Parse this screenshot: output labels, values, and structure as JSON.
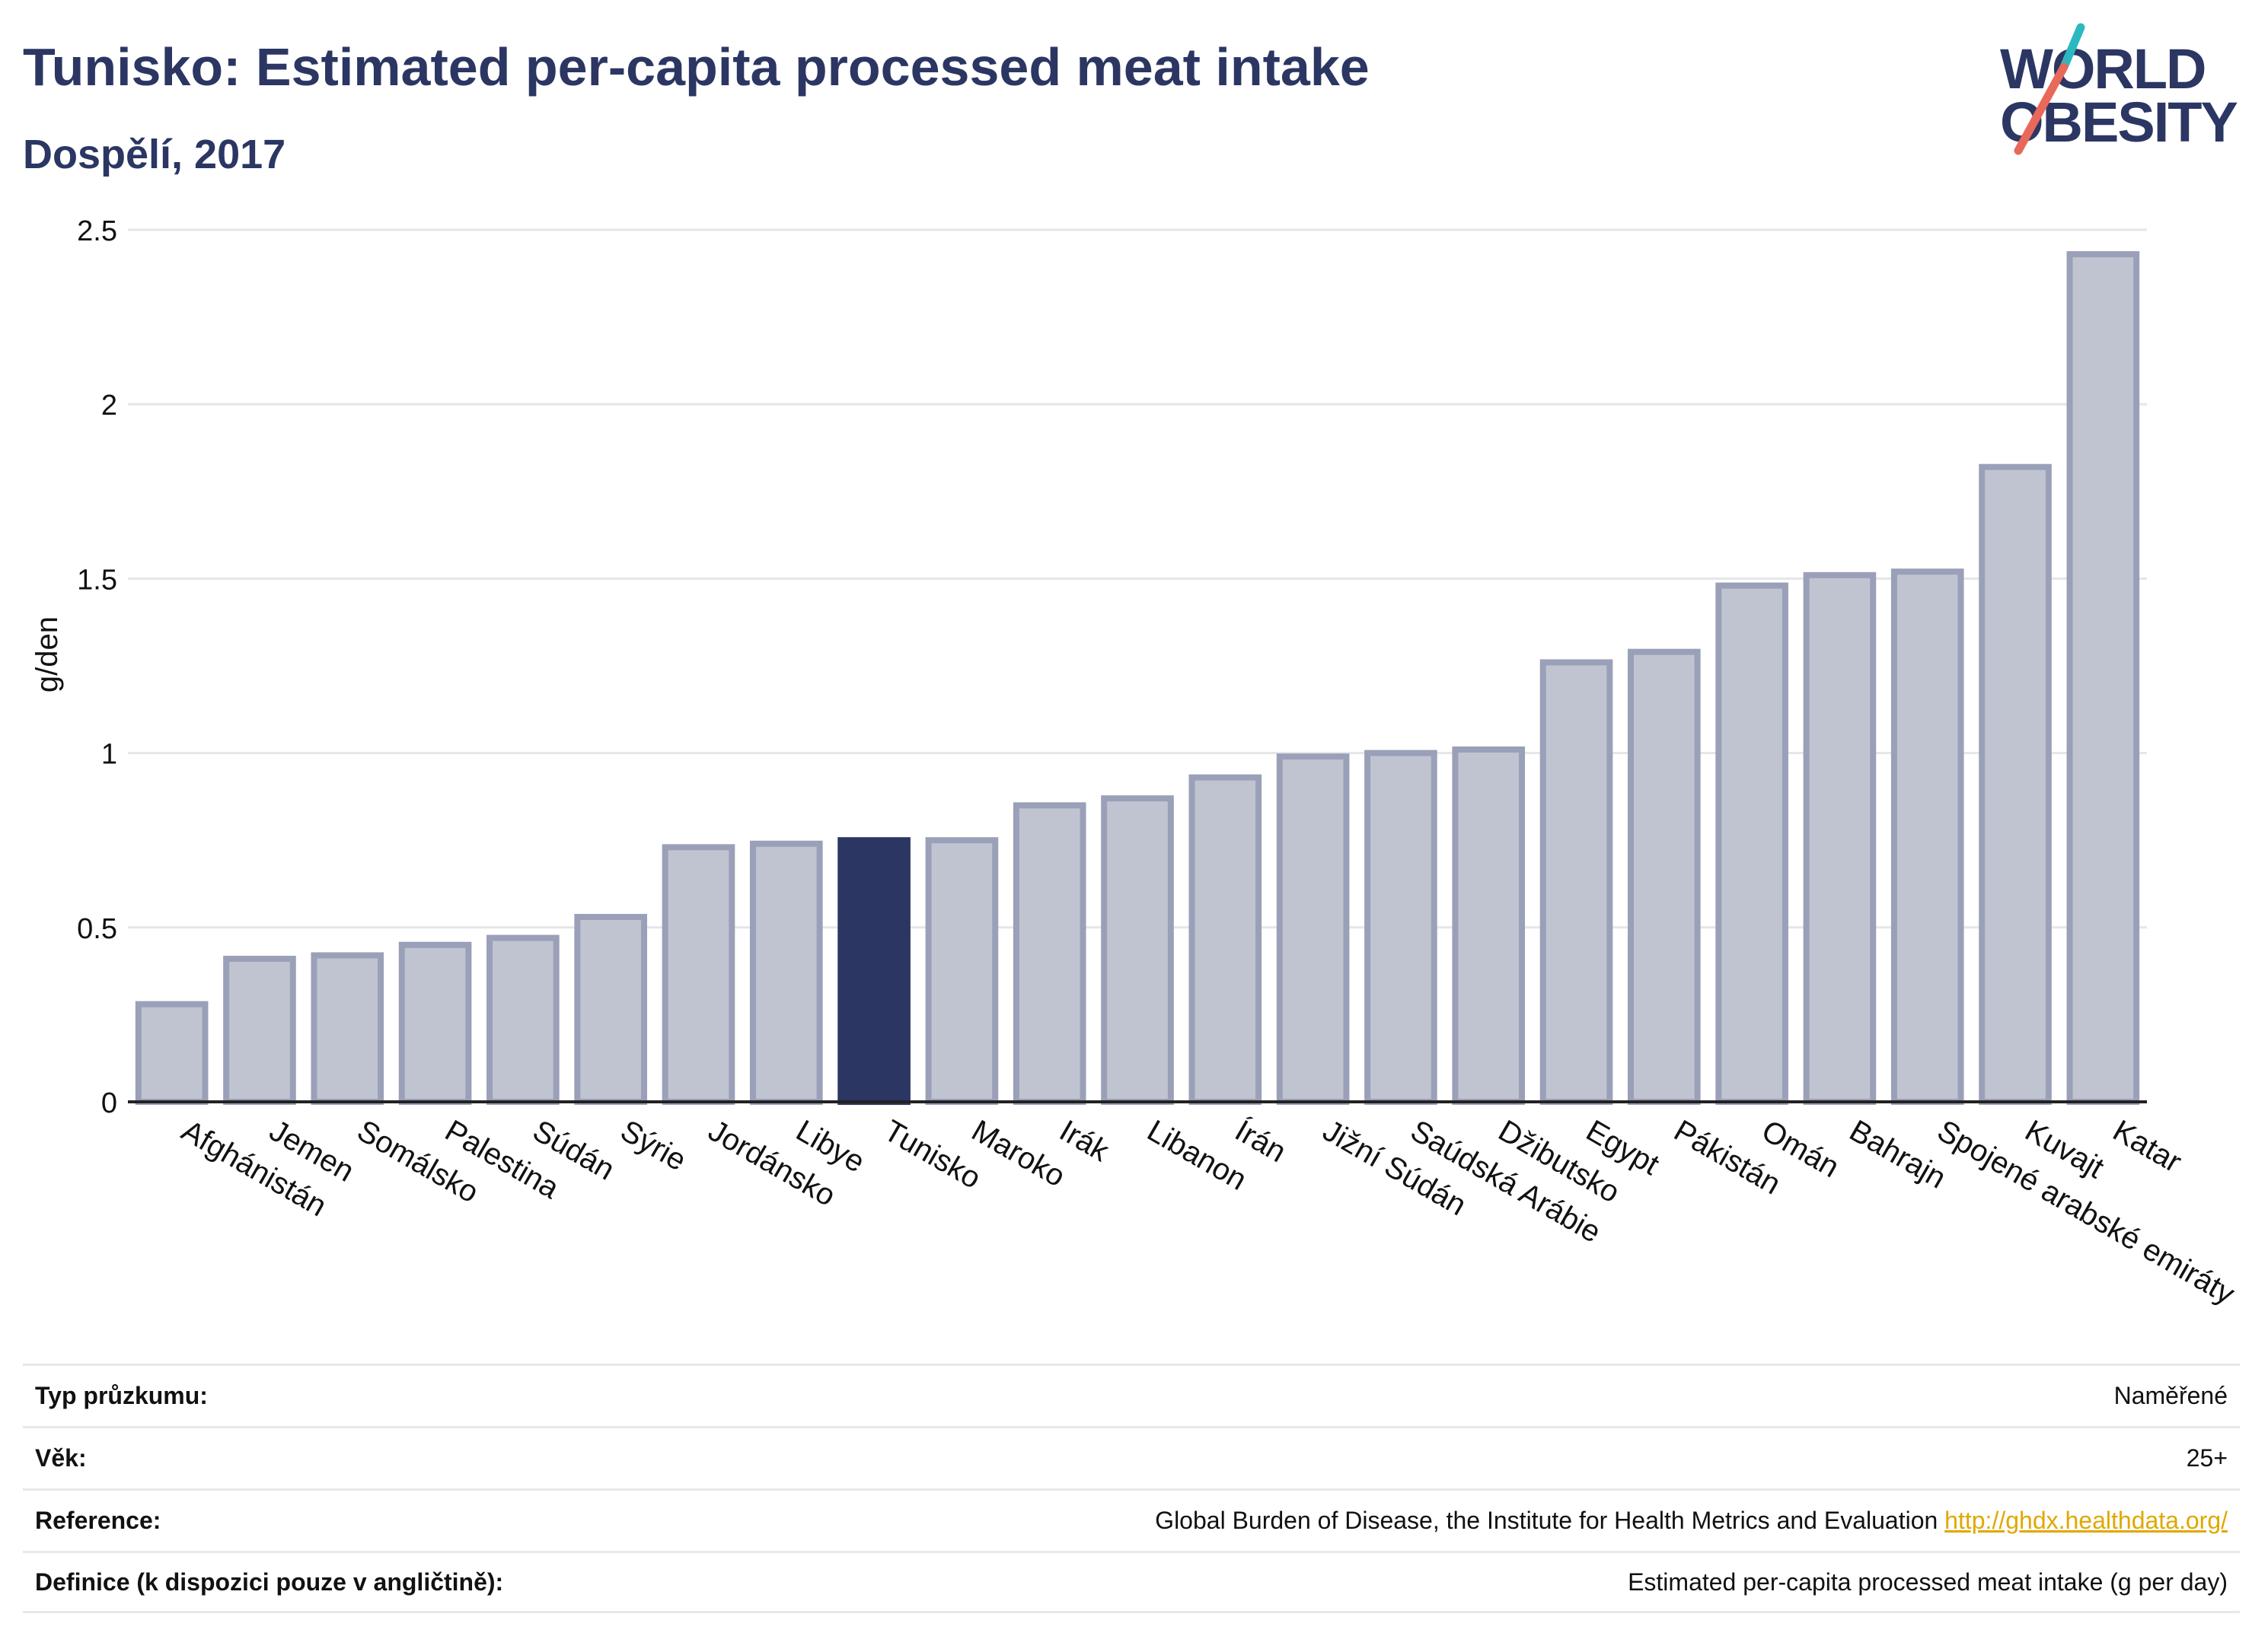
{
  "header": {
    "title": "Tunisko: Estimated per-capita processed meat intake",
    "subtitle": "Dospělí, 2017"
  },
  "logo": {
    "line1": "WORLD",
    "line2": "OBESITY"
  },
  "colors": {
    "highlight": "#2b3663",
    "bar_fill": "#c0c4d1",
    "bar_stroke": "#9aa0b8",
    "logo_teal": "#2cb8c1",
    "logo_coral": "#e8685a",
    "link": "#e0a800"
  },
  "chart_data": {
    "type": "bar",
    "ylabel": "g/den",
    "xlabel": "",
    "ylim": [
      0,
      2.5
    ],
    "yticks": [
      0,
      0.5,
      1,
      1.5,
      2,
      2.5
    ],
    "ytick_labels": [
      "0",
      "0.5",
      "1",
      "1.5",
      "2",
      "2.5"
    ],
    "grid": true,
    "highlight": "Tunisko",
    "categories": [
      "Afghánistán",
      "Jemen",
      "Somálsko",
      "Palestina",
      "Súdán",
      "Sýrie",
      "Jordánsko",
      "Libye",
      "Tunisko",
      "Maroko",
      "Irák",
      "Libanon",
      "Írán",
      "Jižní Súdán",
      "Saúdská Arábie",
      "Džibutsko",
      "Egypt",
      "Pákistán",
      "Omán",
      "Bahrajn",
      "Spojené arabské emiráty",
      "Kuvajt",
      "Katar"
    ],
    "values": [
      0.28,
      0.41,
      0.42,
      0.45,
      0.47,
      0.53,
      0.73,
      0.74,
      0.75,
      0.75,
      0.85,
      0.87,
      0.93,
      0.99,
      1.0,
      1.01,
      1.26,
      1.29,
      1.48,
      1.51,
      1.52,
      1.82,
      2.43
    ]
  },
  "info": [
    {
      "label": "Typ průzkumu:",
      "value": "Naměřené"
    },
    {
      "label": "Věk:",
      "value": "25+"
    },
    {
      "label": "Reference:",
      "value": "Global Burden of Disease, the Institute for Health Metrics and Evaluation",
      "link": "http://ghdx.healthdata.org/"
    },
    {
      "label": "Definice (k dispozici pouze v angličtině):",
      "value": "Estimated per-capita processed meat intake (g per day)"
    }
  ]
}
